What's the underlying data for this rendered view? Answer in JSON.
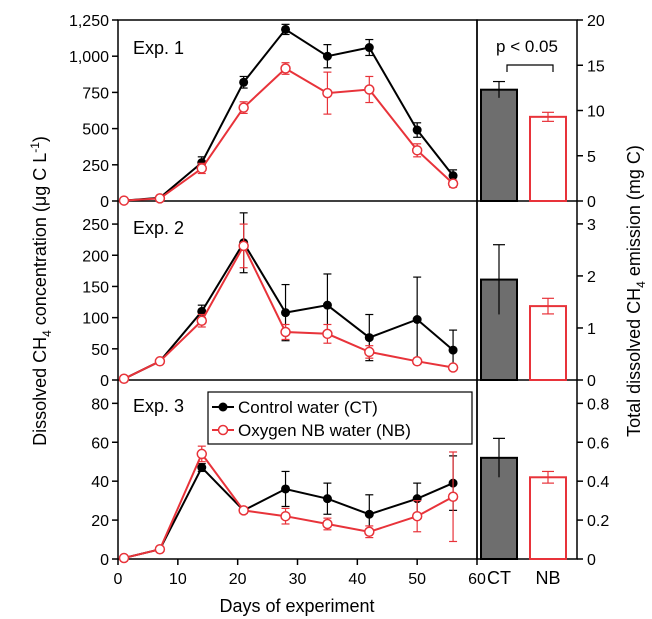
{
  "chart_data": [
    {
      "type": "line",
      "title": "Exp. 1",
      "x": [
        1,
        7,
        14,
        21,
        28,
        35,
        42,
        50,
        56
      ],
      "ylim": [
        0,
        1250
      ],
      "yticks": [
        "0",
        "250",
        "500",
        "750",
        "1,000",
        "1,250"
      ],
      "series": [
        {
          "name": "Control water (CT)",
          "color": "#000000",
          "values": [
            3,
            22,
            265,
            820,
            1185,
            1000,
            1060,
            490,
            175
          ],
          "errors": [
            5,
            8,
            40,
            40,
            35,
            80,
            55,
            50,
            40
          ]
        },
        {
          "name": "Oxygen NB water (NB)",
          "color": "#e8333a",
          "values": [
            3,
            18,
            225,
            645,
            915,
            745,
            770,
            350,
            120
          ],
          "errors": [
            5,
            8,
            35,
            40,
            40,
            145,
            90,
            45,
            25
          ]
        }
      ],
      "bar": {
        "categories": [
          "CT",
          "NB"
        ],
        "values": [
          12.3,
          9.3
        ],
        "errors": [
          0.9,
          0.5
        ],
        "ylim": [
          0,
          20
        ],
        "yticks": [
          "0",
          "5",
          "10",
          "15",
          "20"
        ],
        "annotation": "p < 0.05"
      }
    },
    {
      "type": "line",
      "title": "Exp. 2",
      "x": [
        1,
        7,
        14,
        21,
        28,
        35,
        42,
        50,
        56
      ],
      "ylim": [
        0,
        287
      ],
      "yticks": [
        "0",
        "50",
        "100",
        "150",
        "200",
        "250"
      ],
      "series": [
        {
          "name": "Control water (CT)",
          "color": "#000000",
          "values": [
            2,
            30,
            110,
            220,
            108,
            120,
            68,
            97,
            48
          ],
          "errors": [
            2,
            3,
            10,
            48,
            45,
            50,
            37,
            68,
            32
          ]
        },
        {
          "name": "Oxygen NB water (NB)",
          "color": "#e8333a",
          "values": [
            2,
            30,
            95,
            215,
            77,
            74,
            45,
            30,
            20
          ],
          "errors": [
            2,
            3,
            10,
            35,
            12,
            15,
            10,
            5,
            4
          ]
        }
      ],
      "bar": {
        "categories": [
          "CT",
          "NB"
        ],
        "values": [
          1.93,
          1.42
        ],
        "errors": [
          0.67,
          0.15
        ],
        "ylim": [
          0,
          3.44
        ],
        "yticks": [
          "0",
          "1",
          "2",
          "3"
        ]
      }
    },
    {
      "type": "line",
      "title": "Exp. 3",
      "x": [
        1,
        7,
        14,
        21,
        28,
        35,
        42,
        50,
        56
      ],
      "ylim": [
        0,
        92
      ],
      "yticks": [
        "0",
        "20",
        "40",
        "60",
        "80"
      ],
      "series": [
        {
          "name": "Control water (CT)",
          "color": "#000000",
          "values": [
            0.5,
            5,
            47,
            25,
            36,
            31,
            23,
            31,
            39
          ],
          "errors": [
            0.3,
            1,
            2,
            1.5,
            9,
            8,
            10,
            8,
            14
          ]
        },
        {
          "name": "Oxygen NB water (NB)",
          "color": "#e8333a",
          "values": [
            0.5,
            5,
            54,
            25,
            22,
            18,
            14,
            22,
            32
          ],
          "errors": [
            0.3,
            1,
            4,
            1.5,
            4,
            3,
            3,
            8,
            23
          ]
        }
      ],
      "bar": {
        "categories": [
          "CT",
          "NB"
        ],
        "values": [
          0.52,
          0.42
        ],
        "errors": [
          0.1,
          0.03
        ],
        "ylim": [
          0,
          0.92
        ],
        "yticks": [
          "0",
          "0.2",
          "0.4",
          "0.6",
          "0.8"
        ]
      },
      "legend": {
        "entries": [
          "Control water (CT)",
          "Oxygen NB water (NB)"
        ],
        "placement": "top-center"
      }
    }
  ],
  "xaxis": {
    "label": "Days of experiment",
    "ticks": [
      "0",
      "10",
      "20",
      "30",
      "40",
      "50",
      "60"
    ],
    "xlim": [
      0,
      60
    ]
  },
  "left_ylabel": "Dissolved CH4 concentration (μg C L-1)",
  "right_ylabel": "Total dissolved CH4 emission (mg C)",
  "colors": {
    "control": "#000000",
    "nb": "#e8333a",
    "ct_bar_fill": "#6e6e6e",
    "nb_bar_fill": "#ffffff"
  }
}
